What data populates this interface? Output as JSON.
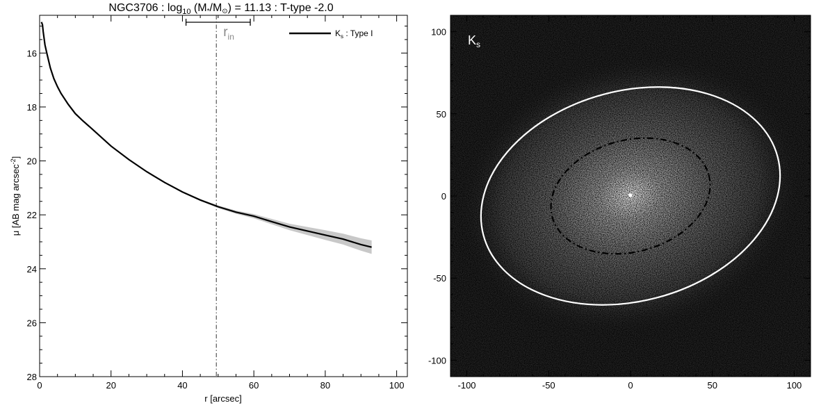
{
  "chart_data": [
    {
      "type": "line",
      "title_parts": {
        "galaxy": "NGC3706 : log",
        "sub10": "10",
        "mass_open": " (M",
        "star": "*",
        "mass_slash": "/M",
        "sun": "⊙",
        "value": ") = 11.13 : T-type -2.0"
      },
      "xlabel": "r [arcsec]",
      "ylabel_parts": {
        "main": "μ [AB mag arcsec",
        "sup": "-2",
        "close": "]"
      },
      "xlim": [
        0,
        103
      ],
      "ylim": [
        28,
        14.6
      ],
      "y_inverted": true,
      "x_ticks": [
        "0",
        "20",
        "40",
        "60",
        "80",
        "100"
      ],
      "x_tick_values": [
        0,
        20,
        40,
        60,
        80,
        100
      ],
      "y_ticks": [
        "16",
        "18",
        "20",
        "22",
        "24",
        "26",
        "28"
      ],
      "y_tick_values": [
        16,
        18,
        20,
        22,
        24,
        26,
        28
      ],
      "legend": {
        "main": "K",
        "sub": "s",
        "rest": " : Type I",
        "placement": "top-right"
      },
      "series": [
        {
          "name_parts": [
            "K",
            "s",
            " : Type I"
          ],
          "color": "#000000",
          "x": [
            0.5,
            0.8,
            1,
            1.5,
            2,
            3,
            4,
            5,
            6,
            8,
            10,
            12,
            15,
            20,
            25,
            30,
            35,
            40,
            45,
            50,
            55,
            60,
            65,
            70,
            75,
            80,
            85,
            90,
            93
          ],
          "y": [
            14.85,
            14.95,
            15.2,
            15.7,
            16.0,
            16.55,
            16.95,
            17.25,
            17.5,
            17.9,
            18.25,
            18.5,
            18.85,
            19.45,
            19.95,
            20.4,
            20.8,
            21.15,
            21.45,
            21.7,
            21.9,
            22.05,
            22.25,
            22.45,
            22.6,
            22.75,
            22.9,
            23.1,
            23.2
          ],
          "uncertainty_color": "#c8c8c8",
          "uncertainty": [
            0,
            0,
            0,
            0,
            0,
            0,
            0,
            0,
            0,
            0,
            0,
            0,
            0,
            0,
            0,
            0,
            0,
            0,
            0.03,
            0.05,
            0.06,
            0.08,
            0.1,
            0.12,
            0.15,
            0.18,
            0.2,
            0.23,
            0.25
          ]
        }
      ],
      "r_in": {
        "label": "r",
        "sub": "in",
        "value": 49.5,
        "range": [
          41,
          59
        ]
      }
    },
    {
      "type": "heatmap",
      "band_label": {
        "main": "K",
        "sub": "s"
      },
      "xlim": [
        -110,
        110
      ],
      "ylim": [
        -110,
        110
      ],
      "x_ticks": [
        "-100",
        "-50",
        "0",
        "50",
        "100"
      ],
      "x_tick_values": [
        -100,
        -50,
        0,
        50,
        100
      ],
      "y_ticks": [
        "100",
        "50",
        "0",
        "-50",
        "-100"
      ],
      "y_tick_values": [
        100,
        50,
        0,
        -50,
        -100
      ],
      "colormap": "grayscale",
      "background": "#222222",
      "ellipses": [
        {
          "name": "outer",
          "color": "#ffffff",
          "style": "solid",
          "semi_major": 93,
          "semi_minor": 64,
          "angle_deg": -15
        },
        {
          "name": "inner",
          "color": "#000000",
          "style": "dash-dot",
          "semi_major": 49.5,
          "semi_minor": 34,
          "angle_deg": -15
        }
      ]
    }
  ]
}
